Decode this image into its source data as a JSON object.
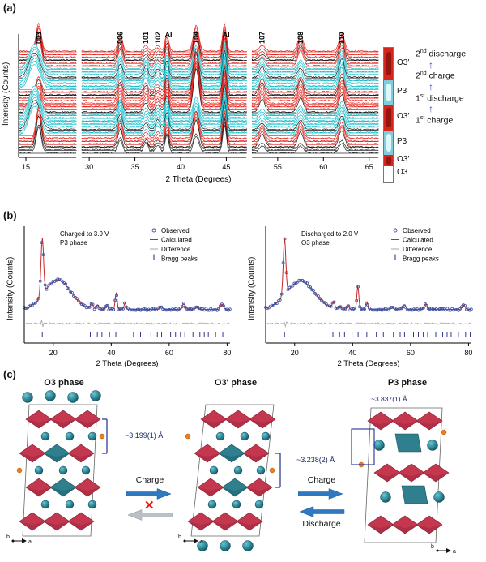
{
  "panel_a": {
    "label": "(a)",
    "phase_bar": {
      "segments": [
        {
          "label": "O3′",
          "color": "#d6261c",
          "cap": "#8f1410",
          "h": 40
        },
        {
          "label": "P3",
          "color": "#7fcddb",
          "cap": "#eafbfd",
          "h": 30
        },
        {
          "label": "O3′",
          "color": "#d6261c",
          "cap": "#8f1410",
          "h": 32
        },
        {
          "label": "P3",
          "color": "#7fcddb",
          "cap": "#eafbfd",
          "h": 30
        },
        {
          "label": "O3′",
          "color": "#d6261c",
          "cap": "#8f1410",
          "h": 14
        }
      ],
      "bottom_label": "O3"
    },
    "arrow_glyph": "↑",
    "cycles": [
      {
        "num": "2",
        "ord": "nd",
        "word": "discharge"
      },
      {
        "num": "2",
        "ord": "nd",
        "word": "charge"
      },
      {
        "num": "1",
        "ord": "st",
        "word": "discharge"
      },
      {
        "num": "1",
        "ord": "st",
        "word": "charge"
      }
    ]
  },
  "panel_b": {
    "label": "(b)"
  },
  "panel_c": {
    "label": "(c)",
    "structures": [
      {
        "title": "O3 phase",
        "distance": "~3.199(1) Å",
        "axis_h": "a",
        "axis_o": "b"
      },
      {
        "title": "O3′ phase",
        "distance": "~3.238(2) Å",
        "axis_h": "a",
        "axis_o": "b"
      },
      {
        "title": "P3 phase",
        "distance": "~3.837(1) Å",
        "axis_h": "a",
        "axis_o": "b"
      }
    ],
    "transitions": [
      {
        "forward": "Charge",
        "x_mark": "✕"
      },
      {
        "forward": "Charge",
        "backward": "Discharge"
      }
    ]
  },
  "chart_data": [
    {
      "id": "insitu_xrd_waterfall",
      "type": "line",
      "xlabel": "2 Theta (Degrees)",
      "ylabel": "Intensity (Counts)",
      "x_segments": [
        [
          14.2,
          20.5
        ],
        [
          29.2,
          47.2
        ],
        [
          52.2,
          66.0
        ]
      ],
      "x_ticks": [
        15,
        30,
        35,
        40,
        45,
        55,
        60,
        65
      ],
      "n_traces": 36,
      "trace_colors": {
        "O3'": "#e3231c",
        "P3": "#17bcca",
        "O3": "#2c2c2c",
        "marker": "#151515"
      },
      "bands_top_to_bottom": [
        {
          "phase": "O3'",
          "rows": 6
        },
        {
          "phase": "P3",
          "rows": 8
        },
        {
          "phase": "O3'",
          "rows": 8
        },
        {
          "phase": "P3",
          "rows": 8
        },
        {
          "phase": "O3'",
          "rows": 4
        },
        {
          "phase": "O3",
          "rows": 2
        }
      ],
      "peaks": [
        {
          "label": "003",
          "x": 16.4,
          "h": 1.0,
          "w": 0.28,
          "label_rot": true
        },
        {
          "label": "006",
          "x": 33.4,
          "h": 0.5,
          "w": 0.26,
          "label_rot": true
        },
        {
          "label": "101",
          "x": 36.2,
          "h": 0.38,
          "w": 0.24,
          "label_rot": true
        },
        {
          "label": "102",
          "x": 37.5,
          "h": 0.32,
          "w": 0.24,
          "label_rot": true
        },
        {
          "label": "Al",
          "x": 38.5,
          "h": 0.62,
          "w": 0.2,
          "label_rot": false,
          "fixed": true
        },
        {
          "label": "104",
          "x": 41.7,
          "h": 1.25,
          "w": 0.3,
          "label_rot": true
        },
        {
          "label": "Al",
          "x": 44.8,
          "h": 1.0,
          "w": 0.2,
          "label_rot": false,
          "fixed": true
        },
        {
          "label": "107",
          "x": 53.3,
          "h": 0.4,
          "w": 0.3,
          "label_rot": true
        },
        {
          "label": "108",
          "x": 57.5,
          "h": 0.45,
          "w": 0.3,
          "label_rot": true
        },
        {
          "label": "110",
          "x": 62.0,
          "h": 0.5,
          "w": 0.3,
          "label_rot": true
        }
      ]
    },
    {
      "id": "rietveld_charged_p3",
      "type": "scatter",
      "annotation": [
        "Charged to 3.9 V",
        "P3 phase"
      ],
      "legend": [
        "Observed",
        "Calculated",
        "Difference",
        "Bragg peaks"
      ],
      "colors": {
        "observed": "#3b4fa0",
        "calculated": "#c62828",
        "difference": "#a6a6a6",
        "bragg": "#1a237e"
      },
      "xlabel": "2 Theta (Degrees)",
      "ylabel": "Intensity (Counts)",
      "x_range": [
        10,
        81
      ],
      "x_ticks": [
        20,
        40,
        60,
        80
      ],
      "background_hump": {
        "center": 21.5,
        "sigma": 4.5,
        "height": 0.52
      },
      "peaks": [
        {
          "x": 16.2,
          "h": 1.0,
          "w": 0.45
        },
        {
          "x": 33.3,
          "h": 0.1,
          "w": 0.4
        },
        {
          "x": 35.3,
          "h": 0.07,
          "w": 0.4
        },
        {
          "x": 38.4,
          "h": 0.09,
          "w": 0.35
        },
        {
          "x": 41.7,
          "h": 0.3,
          "w": 0.33
        },
        {
          "x": 44.8,
          "h": 0.12,
          "w": 0.35
        },
        {
          "x": 57.2,
          "h": 0.05,
          "w": 0.5
        },
        {
          "x": 65.0,
          "h": 0.1,
          "w": 0.5
        },
        {
          "x": 69.5,
          "h": 0.05,
          "w": 0.5
        },
        {
          "x": 78.2,
          "h": 0.09,
          "w": 0.5
        }
      ],
      "bragg_peaks": [
        16.2,
        32.8,
        35.2,
        36.8,
        39.4,
        41.6,
        43.4,
        47.7,
        50.1,
        53.7,
        55.9,
        57.4,
        60.5,
        62.2,
        63.9,
        65.4,
        68.2,
        70.6,
        72.1,
        73.5,
        76.0,
        78.5,
        80.3
      ]
    },
    {
      "id": "rietveld_discharged_o3",
      "type": "scatter",
      "annotation": [
        "Discharged to 2.0 V",
        "O3 phase"
      ],
      "legend": [
        "Observed",
        "Calculated",
        "Difference",
        "Bragg peaks"
      ],
      "colors": {
        "observed": "#3b4fa0",
        "calculated": "#c62828",
        "difference": "#a6a6a6",
        "bragg": "#1a237e"
      },
      "xlabel": "2 Theta (Degrees)",
      "ylabel": "Intensity (Counts)",
      "x_range": [
        10,
        81
      ],
      "x_ticks": [
        20,
        40,
        60,
        80
      ],
      "background_hump": {
        "center": 22.0,
        "sigma": 4.8,
        "height": 0.5
      },
      "peaks": [
        {
          "x": 16.5,
          "h": 1.0,
          "w": 0.45
        },
        {
          "x": 33.4,
          "h": 0.12,
          "w": 0.4
        },
        {
          "x": 35.6,
          "h": 0.06,
          "w": 0.4
        },
        {
          "x": 38.4,
          "h": 0.08,
          "w": 0.35
        },
        {
          "x": 41.8,
          "h": 0.42,
          "w": 0.33
        },
        {
          "x": 44.9,
          "h": 0.14,
          "w": 0.35
        },
        {
          "x": 53.5,
          "h": 0.05,
          "w": 0.5
        },
        {
          "x": 57.8,
          "h": 0.08,
          "w": 0.5
        },
        {
          "x": 65.2,
          "h": 0.1,
          "w": 0.5
        },
        {
          "x": 78.3,
          "h": 0.08,
          "w": 0.5
        }
      ],
      "bragg_peaks": [
        16.5,
        33.2,
        35.5,
        37.2,
        39.8,
        41.9,
        44.9,
        48.2,
        50.6,
        54.1,
        56.4,
        57.9,
        61.0,
        62.7,
        64.4,
        65.9,
        68.7,
        71.1,
        72.6,
        74.0,
        76.5,
        79.0,
        80.6
      ]
    }
  ]
}
